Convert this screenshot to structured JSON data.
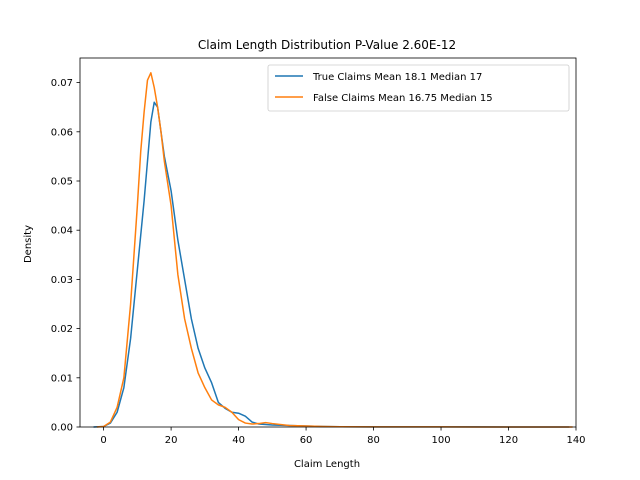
{
  "chart_data": {
    "type": "line",
    "title": "Claim Length Distribution P-Value 2.60E-12",
    "xlabel": "Claim Length",
    "ylabel": "Density",
    "xlim": [
      -7,
      140
    ],
    "ylim": [
      0,
      0.075
    ],
    "xticks": [
      0,
      20,
      40,
      60,
      80,
      100,
      120,
      140
    ],
    "xtick_labels": [
      "0",
      "20",
      "40",
      "60",
      "80",
      "100",
      "120",
      "140"
    ],
    "yticks": [
      0,
      0.01,
      0.02,
      0.03,
      0.04,
      0.05,
      0.06,
      0.07
    ],
    "ytick_labels": [
      "0.00",
      "0.01",
      "0.02",
      "0.03",
      "0.04",
      "0.05",
      "0.06",
      "0.07"
    ],
    "grid": false,
    "legend_position": "top-right",
    "series": [
      {
        "name": "True Claims Mean 18.1 Median 17",
        "color": "#1f77b4",
        "points": [
          [
            -3,
            0
          ],
          [
            0,
            0.0001
          ],
          [
            2,
            0.0008
          ],
          [
            4,
            0.003
          ],
          [
            6,
            0.008
          ],
          [
            8,
            0.018
          ],
          [
            10,
            0.032
          ],
          [
            12,
            0.046
          ],
          [
            13,
            0.054
          ],
          [
            14,
            0.062
          ],
          [
            15,
            0.066
          ],
          [
            16,
            0.065
          ],
          [
            17,
            0.06
          ],
          [
            18,
            0.055
          ],
          [
            20,
            0.048
          ],
          [
            22,
            0.038
          ],
          [
            24,
            0.03
          ],
          [
            26,
            0.022
          ],
          [
            28,
            0.016
          ],
          [
            30,
            0.012
          ],
          [
            32,
            0.009
          ],
          [
            34,
            0.005
          ],
          [
            36,
            0.0038
          ],
          [
            38,
            0.003
          ],
          [
            40,
            0.0028
          ],
          [
            42,
            0.0022
          ],
          [
            44,
            0.001
          ],
          [
            46,
            0.0006
          ],
          [
            48,
            0.0005
          ],
          [
            50,
            0.0004
          ],
          [
            55,
            0.0003
          ],
          [
            60,
            0.0002
          ],
          [
            65,
            0.0001
          ],
          [
            70,
            5e-05
          ],
          [
            80,
            3e-05
          ],
          [
            90,
            3e-05
          ],
          [
            100,
            2e-05
          ],
          [
            110,
            2e-05
          ],
          [
            120,
            1e-05
          ],
          [
            130,
            1e-05
          ],
          [
            138,
            0
          ]
        ]
      },
      {
        "name": "False Claims Mean 16.75 Median 15",
        "color": "#ff7f0e",
        "points": [
          [
            -2,
            0
          ],
          [
            0,
            0.0001
          ],
          [
            2,
            0.001
          ],
          [
            4,
            0.004
          ],
          [
            6,
            0.01
          ],
          [
            8,
            0.025
          ],
          [
            10,
            0.045
          ],
          [
            11,
            0.056
          ],
          [
            12,
            0.064
          ],
          [
            13,
            0.0705
          ],
          [
            14,
            0.072
          ],
          [
            15,
            0.069
          ],
          [
            16,
            0.065
          ],
          [
            17,
            0.06
          ],
          [
            18,
            0.054
          ],
          [
            20,
            0.045
          ],
          [
            22,
            0.031
          ],
          [
            24,
            0.022
          ],
          [
            26,
            0.016
          ],
          [
            28,
            0.011
          ],
          [
            30,
            0.008
          ],
          [
            32,
            0.0055
          ],
          [
            34,
            0.0045
          ],
          [
            36,
            0.004
          ],
          [
            38,
            0.003
          ],
          [
            40,
            0.0015
          ],
          [
            42,
            0.0008
          ],
          [
            44,
            0.0006
          ],
          [
            46,
            0.0007
          ],
          [
            48,
            0.0009
          ],
          [
            50,
            0.0007
          ],
          [
            55,
            0.0003
          ],
          [
            60,
            0.0002
          ],
          [
            65,
            0.0001
          ],
          [
            70,
            5e-05
          ],
          [
            80,
            2e-05
          ],
          [
            90,
            3e-05
          ],
          [
            100,
            2e-05
          ],
          [
            110,
            1e-05
          ],
          [
            120,
            1e-05
          ],
          [
            130,
            1e-05
          ],
          [
            139,
            0
          ]
        ]
      }
    ]
  }
}
